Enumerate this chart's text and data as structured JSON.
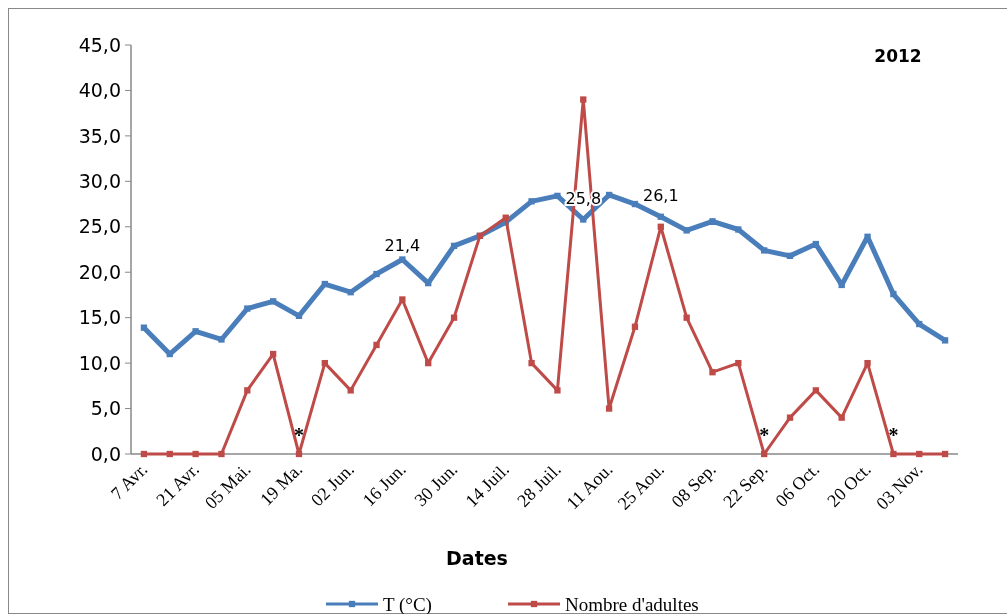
{
  "chart_data": {
    "type": "line",
    "title": "2012",
    "xlabel": "Dates",
    "categories": [
      "7 Avr.",
      null,
      "21 Avr.",
      null,
      "05 Mai.",
      null,
      "19 Ma.",
      null,
      "02 Jun.",
      null,
      "16 Jun.",
      null,
      "30 Jun.",
      null,
      "14 Juil.",
      null,
      "28 Juil.",
      null,
      "11 Aou.",
      null,
      "25 Aou.",
      null,
      "08 Sep.",
      null,
      "22 Sep.",
      null,
      "06 Oct.",
      null,
      "20 Oct.",
      null,
      "03 Nov.",
      null
    ],
    "series": [
      {
        "name": "T (°C)",
        "color": "#4a7ebb",
        "values": [
          13.9,
          11.0,
          13.5,
          12.6,
          16.0,
          16.8,
          15.2,
          18.7,
          17.8,
          19.8,
          21.4,
          18.8,
          22.9,
          24.0,
          25.5,
          27.8,
          28.4,
          25.8,
          28.5,
          27.5,
          26.1,
          24.6,
          25.6,
          24.7,
          22.4,
          21.8,
          23.1,
          18.6,
          23.9,
          17.6,
          14.3,
          12.5
        ],
        "value_labels": [
          null,
          null,
          null,
          null,
          null,
          null,
          null,
          null,
          null,
          null,
          "21,4",
          null,
          null,
          null,
          null,
          null,
          null,
          "25,8",
          null,
          null,
          "26,1",
          null,
          null,
          null,
          null,
          null,
          null,
          null,
          null,
          null,
          null,
          null
        ]
      },
      {
        "name": "Nombre d'adultes",
        "color": "#be4b48",
        "values": [
          0,
          0,
          0,
          0,
          7,
          11,
          0,
          10,
          7,
          12,
          17,
          10,
          15,
          24,
          26,
          10,
          7,
          39,
          5,
          14,
          25,
          15,
          9,
          10,
          0,
          4,
          7,
          4,
          10,
          0,
          0,
          0
        ]
      }
    ],
    "ylim": [
      0,
      45
    ],
    "yticks": [
      {
        "value": 0,
        "label": "0,0"
      },
      {
        "value": 5,
        "label": "5,0"
      },
      {
        "value": 10,
        "label": "10,0"
      },
      {
        "value": 15,
        "label": "15,0"
      },
      {
        "value": 20,
        "label": "20,0"
      },
      {
        "value": 25,
        "label": "25,0"
      },
      {
        "value": 30,
        "label": "30,0"
      },
      {
        "value": 35,
        "label": "35,0"
      },
      {
        "value": 40,
        "label": "40,0"
      },
      {
        "value": 45,
        "label": "45,0"
      }
    ],
    "annotations": [
      {
        "text": "*",
        "x": "19 Ma.",
        "y": 0
      },
      {
        "text": "*",
        "x": "22 Sep.",
        "y": 0
      },
      {
        "text": "*",
        "y": 0
      }
    ],
    "grid": false,
    "legend": "bottom",
    "marker": "square",
    "line_style": "solid"
  }
}
